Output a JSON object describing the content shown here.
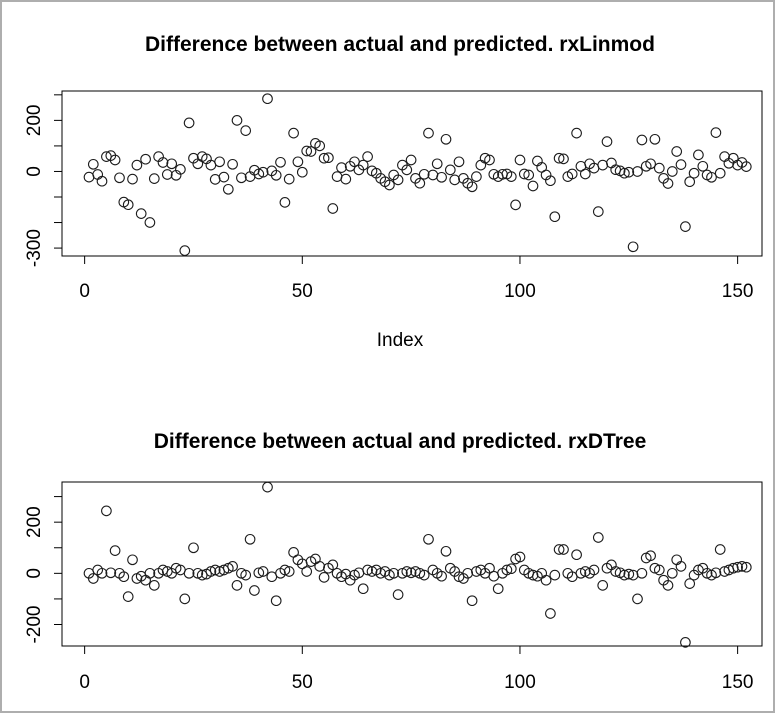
{
  "window": {
    "background": "#ffffff",
    "border_color": "#aeaeae"
  },
  "chart_data": [
    {
      "type": "scatter",
      "title": "Difference between actual and predicted. rxLinmod",
      "xlabel": "Index",
      "ylabel": "",
      "marker": "open-circle",
      "marker_color": "#1c1c1c",
      "n_points": 152,
      "x_description": "index 1..152",
      "xlim": [
        -5.2,
        155.6
      ],
      "ylim": [
        -331,
        315
      ],
      "xticks": [
        0,
        50,
        100,
        150
      ],
      "xtick_labels": [
        "0",
        "50",
        "100",
        "150"
      ],
      "yticks": [
        300,
        200,
        100,
        0,
        -100,
        -200,
        -300
      ],
      "ytick_labels": [
        "",
        "200",
        "",
        "0",
        "",
        "",
        "-300"
      ],
      "grid": false,
      "y": [
        -22,
        28,
        -12,
        -38,
        58,
        62,
        45,
        -25,
        -120,
        -130,
        -30,
        25,
        -165,
        48,
        -200,
        -28,
        58,
        35,
        -12,
        30,
        -15,
        8,
        -310,
        190,
        52,
        30,
        58,
        49,
        25,
        -31,
        38,
        -22,
        -70,
        28,
        200,
        -25,
        160,
        -20,
        5,
        -10,
        -3,
        285,
        2,
        -15,
        36,
        -121,
        -30,
        150,
        38,
        -3,
        80,
        78,
        110,
        100,
        52,
        54,
        -145,
        -20,
        15,
        -30,
        20,
        38,
        6,
        25,
        58,
        2,
        -7,
        -27,
        -40,
        -53,
        -14,
        -33,
        25,
        6,
        45,
        -27,
        -46,
        -11,
        150,
        -14,
        30,
        -23,
        126,
        6,
        -33,
        38,
        -27,
        -46,
        -60,
        -20,
        25,
        52,
        45,
        -11,
        -20,
        -11,
        -10,
        -20,
        -131,
        45,
        -10,
        -14,
        -57,
        41,
        16,
        -14,
        -36,
        -177,
        52,
        49,
        -20,
        -10,
        150,
        20,
        -10,
        30,
        13,
        -157,
        25,
        117,
        33,
        7,
        2,
        -7,
        -3,
        -295,
        0,
        123,
        20,
        30,
        126,
        13,
        -27,
        -47,
        0,
        78,
        27,
        -216,
        -40,
        -7,
        65,
        20,
        -14,
        -23,
        152,
        -7,
        58,
        32,
        52,
        25,
        35,
        19
      ]
    },
    {
      "type": "scatter",
      "title": "Difference between actual and predicted. rxDTree",
      "xlabel": "",
      "ylabel": "",
      "marker": "open-circle",
      "marker_color": "#1c1c1c",
      "n_points": 152,
      "x_description": "index 1..152",
      "xlim": [
        -5.2,
        155.6
      ],
      "ylim": [
        -284,
        357
      ],
      "xticks": [
        0,
        50,
        100,
        150
      ],
      "xtick_labels": [
        "0",
        "50",
        "100",
        "150"
      ],
      "yticks": [
        300,
        200,
        100,
        0,
        -100,
        -200
      ],
      "ytick_labels": [
        "",
        "200",
        "",
        "0",
        "",
        "-200"
      ],
      "grid": false,
      "y": [
        0,
        -20,
        13,
        0,
        244,
        2,
        89,
        0,
        -13,
        -91,
        53,
        -20,
        -11,
        -27,
        0,
        -47,
        0,
        13,
        7,
        0,
        20,
        13,
        -100,
        0,
        100,
        0,
        -7,
        -3,
        7,
        13,
        7,
        13,
        20,
        27,
        -47,
        0,
        -7,
        133,
        -67,
        2,
        7,
        337,
        -13,
        -107,
        0,
        13,
        7,
        82,
        53,
        37,
        7,
        46,
        56,
        27,
        -16,
        20,
        33,
        0,
        -13,
        -3,
        -27,
        -7,
        2,
        -60,
        13,
        7,
        13,
        0,
        7,
        -7,
        0,
        -83,
        0,
        7,
        2,
        7,
        0,
        -7,
        133,
        13,
        0,
        -11,
        86,
        20,
        7,
        -13,
        -20,
        0,
        -107,
        7,
        13,
        0,
        20,
        -11,
        -60,
        0,
        13,
        18,
        56,
        64,
        13,
        0,
        -7,
        -11,
        0,
        -27,
        -157,
        -7,
        93,
        93,
        0,
        -13,
        73,
        0,
        7,
        0,
        13,
        140,
        -47,
        20,
        33,
        7,
        2,
        -7,
        -3,
        -7,
        -100,
        0,
        60,
        69,
        20,
        13,
        -27,
        -47,
        0,
        53,
        27,
        -270,
        -40,
        -7,
        13,
        20,
        0,
        -7,
        2,
        93,
        7,
        13,
        20,
        24,
        27,
        24
      ]
    }
  ]
}
